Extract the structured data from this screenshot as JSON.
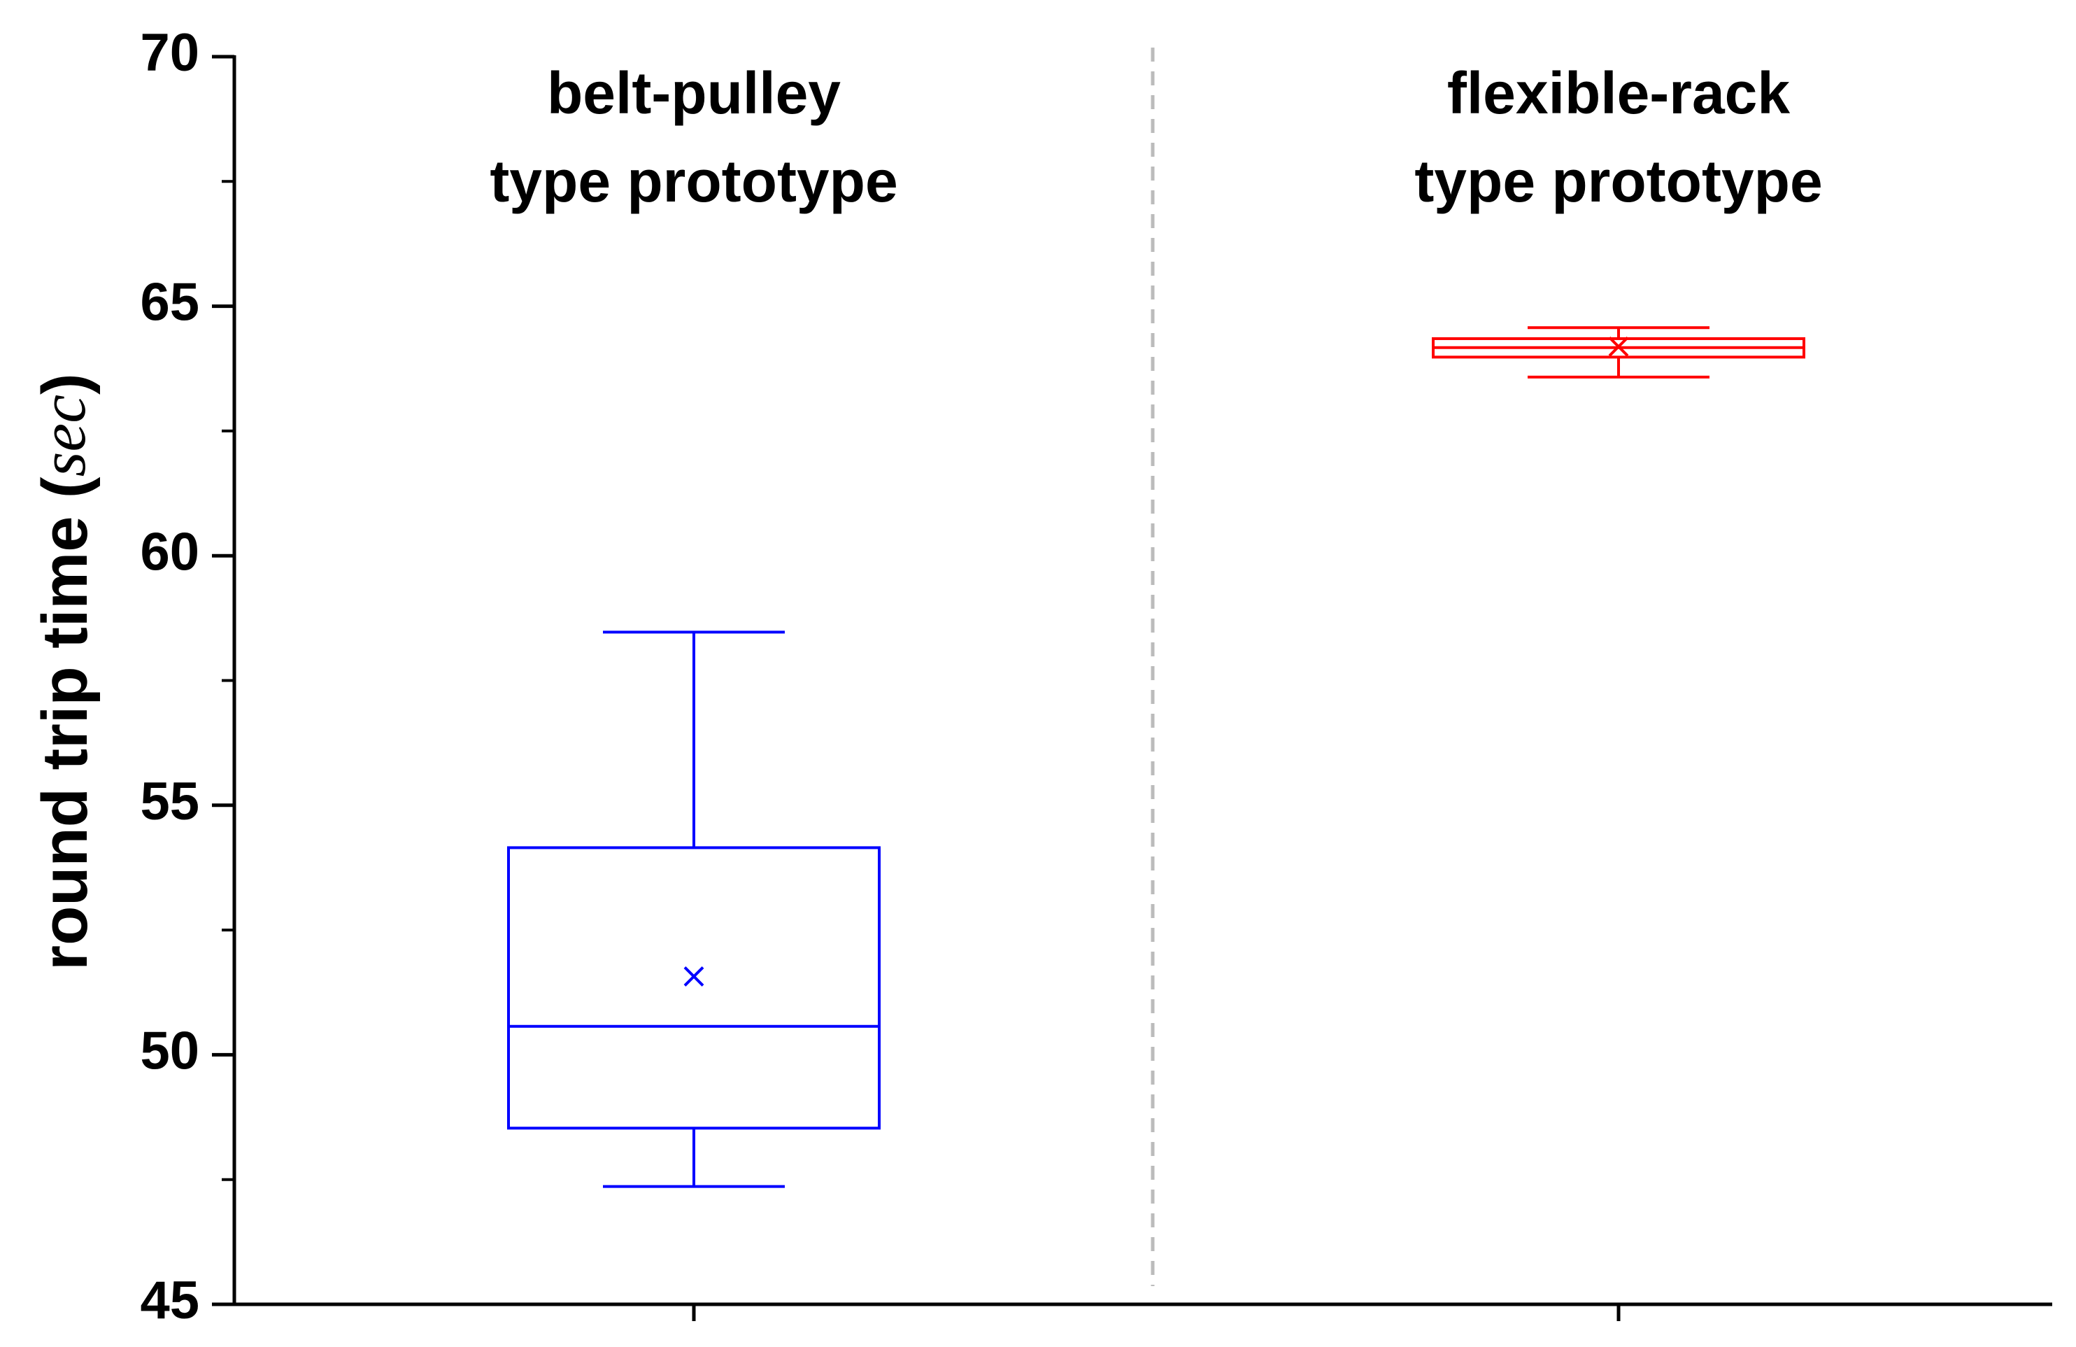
{
  "chart_data": {
    "type": "box",
    "ylabel": [
      "round trip time (",
      "sec",
      ")"
    ],
    "categories": [
      [
        "belt-pulley",
        "type prototype"
      ],
      [
        "flexible-rack",
        "type prototype"
      ]
    ],
    "boxes": [
      {
        "color": "#0000ff",
        "whisker_low": 47.36,
        "q1": 48.53,
        "median": 50.57,
        "q3": 54.15,
        "whisker_high": 58.47,
        "mean": 51.57
      },
      {
        "color": "#ff0000",
        "whisker_low": 63.58,
        "q1": 63.98,
        "median": 64.17,
        "q3": 64.35,
        "whisker_high": 64.57,
        "mean": 64.19
      }
    ],
    "ylim": [
      45,
      70
    ],
    "yticks": [
      45,
      50,
      55,
      60,
      65,
      70
    ],
    "minor_yticks": [
      47.5,
      52.5,
      57.5,
      62.5,
      67.5
    ]
  }
}
